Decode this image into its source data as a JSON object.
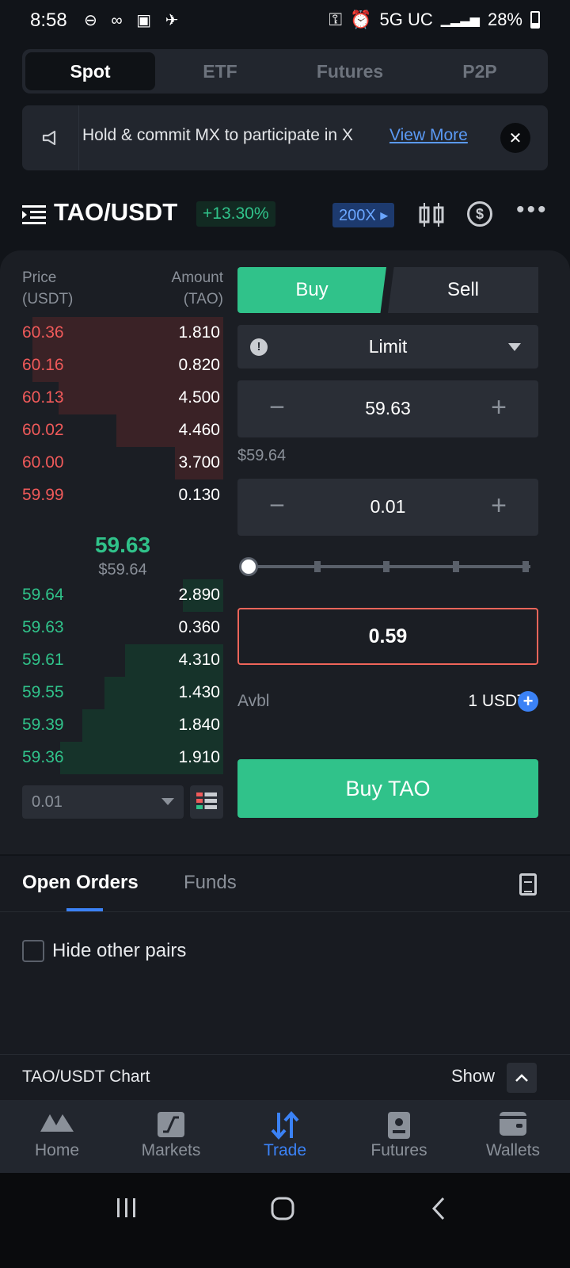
{
  "status_bar": {
    "time": "8:58",
    "network": "5G UC",
    "battery": "28%"
  },
  "top_tabs": [
    "Spot",
    "ETF",
    "Futures",
    "P2P"
  ],
  "banner": {
    "text": "Hold & commit MX to participate in X",
    "link": "View More"
  },
  "pair": {
    "name": "TAO/USDT",
    "change": "+13.30%",
    "leverage": "200X"
  },
  "order_book": {
    "price_header": "Price",
    "price_unit": "(USDT)",
    "amount_header": "Amount",
    "amount_unit": "(TAO)",
    "asks": [
      {
        "price": "60.36",
        "amount": "1.810",
        "depth": 0.95
      },
      {
        "price": "60.16",
        "amount": "0.820",
        "depth": 0.95
      },
      {
        "price": "60.13",
        "amount": "4.500",
        "depth": 0.82
      },
      {
        "price": "60.02",
        "amount": "4.460",
        "depth": 0.53
      },
      {
        "price": "60.00",
        "amount": "3.700",
        "depth": 0.24
      },
      {
        "price": "59.99",
        "amount": "0.130",
        "depth": 0.0
      }
    ],
    "mid_price": "59.63",
    "mid_price_usd": "$59.64",
    "bids": [
      {
        "price": "59.64",
        "amount": "2.890",
        "depth": 0.2
      },
      {
        "price": "59.63",
        "amount": "0.360",
        "depth": 0.0
      },
      {
        "price": "59.61",
        "amount": "4.310",
        "depth": 0.49
      },
      {
        "price": "59.55",
        "amount": "1.430",
        "depth": 0.59
      },
      {
        "price": "59.39",
        "amount": "1.840",
        "depth": 0.7
      },
      {
        "price": "59.36",
        "amount": "1.910",
        "depth": 0.81
      }
    ],
    "precision": "0.01"
  },
  "trade_form": {
    "buy_tab": "Buy",
    "sell_tab": "Sell",
    "order_type": "Limit",
    "price": "59.63",
    "price_usd": "$59.64",
    "quantity": "0.01",
    "total": "0.59",
    "avbl_label": "Avbl",
    "avbl_value": "1 USDT",
    "submit": "Buy TAO"
  },
  "orders": {
    "tab_open": "Open Orders",
    "tab_funds": "Funds",
    "hide_label": "Hide other pairs"
  },
  "chart_bar": {
    "title": "TAO/USDT Chart",
    "toggle": "Show"
  },
  "bottom_nav": [
    {
      "label": "Home",
      "icon": "home-icon"
    },
    {
      "label": "Markets",
      "icon": "markets-icon"
    },
    {
      "label": "Trade",
      "icon": "trade-icon"
    },
    {
      "label": "Futures",
      "icon": "futures-icon"
    },
    {
      "label": "Wallets",
      "icon": "wallet-icon"
    }
  ],
  "colors": {
    "accent": "#30c28a",
    "sell": "#f05a5a",
    "link": "#3b82f6"
  }
}
